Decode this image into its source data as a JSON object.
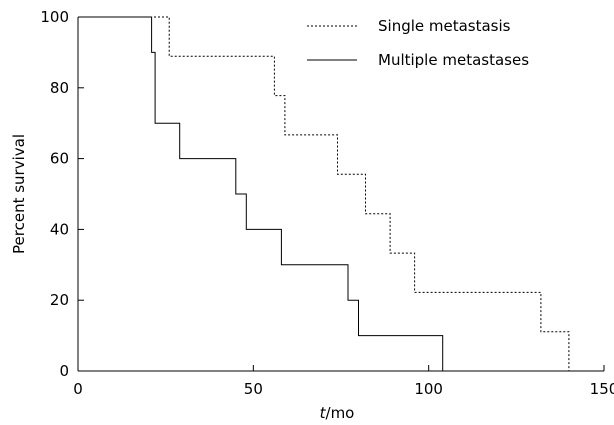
{
  "chart_data": {
    "type": "line",
    "step": true,
    "title": "",
    "xlabel_italic": "t",
    "xlabel_rest": "/mo",
    "ylabel": "Percent survival",
    "xlim": [
      0,
      150
    ],
    "ylim": [
      0,
      100
    ],
    "x_ticks": [
      0,
      50,
      100,
      150
    ],
    "y_ticks": [
      0,
      20,
      40,
      60,
      80,
      100
    ],
    "grid": false,
    "legend_position": "top-right",
    "series": [
      {
        "name": "Single metastasis",
        "style": "dotted",
        "x": [
          0,
          26,
          26,
          56,
          56,
          59,
          59,
          74,
          74,
          82,
          82,
          89,
          89,
          96,
          96,
          132,
          132,
          140,
          140
        ],
        "y": [
          100,
          100,
          88.9,
          88.9,
          77.8,
          77.8,
          66.7,
          66.7,
          55.6,
          55.6,
          44.4,
          44.4,
          33.3,
          33.3,
          22.2,
          22.2,
          11.1,
          11.1,
          0
        ]
      },
      {
        "name": "Multiple metastases",
        "style": "solid",
        "x": [
          0,
          21,
          21,
          22,
          22,
          29,
          29,
          45,
          45,
          48,
          48,
          58,
          58,
          77,
          77,
          80,
          80,
          104,
          104
        ],
        "y": [
          100,
          100,
          90,
          90,
          70,
          70,
          60,
          60,
          50,
          50,
          40,
          40,
          30,
          30,
          20,
          20,
          10,
          10,
          0
        ]
      }
    ]
  }
}
